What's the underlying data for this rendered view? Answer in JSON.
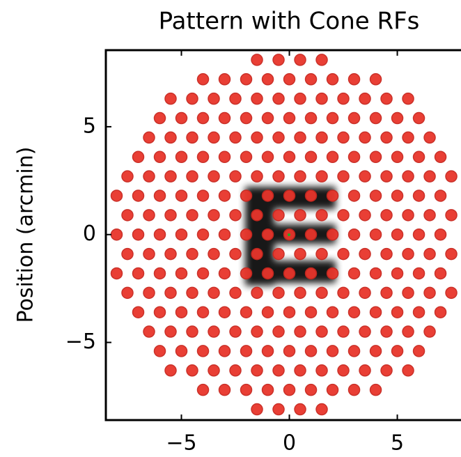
{
  "chart_data": {
    "type": "scatter",
    "title": "Pattern with Cone RFs",
    "ylabel": "Position (arcmin)",
    "color": "#e8352b",
    "xlim": [
      -8.5,
      7.95
    ],
    "ylim": [
      -8.6,
      8.55
    ],
    "xticks": [
      {
        "value": -5,
        "label": "−5"
      },
      0,
      5
    ],
    "yticks": [
      {
        "value": -5,
        "label": "−5"
      },
      0,
      5
    ],
    "x": [
      -1.5,
      -0.5,
      0.5,
      1.5,
      -4,
      -3,
      -2,
      -1,
      0,
      1,
      2,
      3,
      4,
      -5.5,
      -4.5,
      -3.5,
      -2.5,
      -1.5,
      -0.5,
      0.5,
      1.5,
      2.5,
      3.5,
      4.5,
      5.5,
      -6,
      -5,
      -4,
      -3,
      -2,
      -1,
      0,
      1,
      2,
      3,
      4,
      5,
      6,
      -6.5,
      -5.5,
      -4.5,
      -3.5,
      -2.5,
      -1.5,
      -0.5,
      0.5,
      1.5,
      2.5,
      3.5,
      4.5,
      5.5,
      6.5,
      -7,
      -6,
      -5,
      -4,
      -3,
      -2,
      -1,
      0,
      1,
      2,
      3,
      4,
      5,
      6,
      7,
      -7.5,
      -6.5,
      -5.5,
      -4.5,
      -3.5,
      -2.5,
      -1.5,
      -0.5,
      0.5,
      1.5,
      2.5,
      3.5,
      4.5,
      5.5,
      6.5,
      7.5,
      -8,
      -7,
      -6,
      -5,
      -4,
      -3,
      -2,
      -1,
      0,
      1,
      2,
      3,
      4,
      5,
      6,
      7,
      -7.5,
      -6.5,
      -5.5,
      -4.5,
      -3.5,
      -2.5,
      -1.5,
      -0.5,
      0.5,
      1.5,
      2.5,
      3.5,
      4.5,
      5.5,
      6.5,
      7.5,
      -8,
      -7,
      -6,
      -5,
      -4,
      -3,
      -2,
      -1,
      0,
      1,
      2,
      3,
      4,
      5,
      6,
      7,
      -7.5,
      -6.5,
      -5.5,
      -4.5,
      -3.5,
      -2.5,
      -1.5,
      -0.5,
      0.5,
      1.5,
      2.5,
      3.5,
      4.5,
      5.5,
      6.5,
      7.5,
      -8,
      -7,
      -6,
      -5,
      -4,
      -3,
      -2,
      -1,
      0,
      1,
      2,
      3,
      4,
      5,
      6,
      7,
      -7.5,
      -6.5,
      -5.5,
      -4.5,
      -3.5,
      -2.5,
      -1.5,
      -0.5,
      0.5,
      1.5,
      2.5,
      3.5,
      4.5,
      5.5,
      6.5,
      7.5,
      -7,
      -6,
      -5,
      -4,
      -3,
      -2,
      -1,
      0,
      1,
      2,
      3,
      4,
      5,
      6,
      7,
      -6.5,
      -5.5,
      -4.5,
      -3.5,
      -2.5,
      -1.5,
      -0.5,
      0.5,
      1.5,
      2.5,
      3.5,
      4.5,
      5.5,
      6.5,
      -6,
      -5,
      -4,
      -3,
      -2,
      -1,
      0,
      1,
      2,
      3,
      4,
      5,
      6,
      -5.5,
      -4.5,
      -3.5,
      -2.5,
      -1.5,
      -0.5,
      0.5,
      1.5,
      2.5,
      3.5,
      4.5,
      5.5,
      -4,
      -3,
      -2,
      -1,
      0,
      1,
      2,
      3,
      4,
      -1.5,
      -0.5,
      0.5,
      1.5
    ],
    "values": [
      8.1,
      8.1,
      8.1,
      8.1,
      7.2,
      7.2,
      7.2,
      7.2,
      7.2,
      7.2,
      7.2,
      7.2,
      7.2,
      6.3,
      6.3,
      6.3,
      6.3,
      6.3,
      6.3,
      6.3,
      6.3,
      6.3,
      6.3,
      6.3,
      6.3,
      5.4,
      5.4,
      5.4,
      5.4,
      5.4,
      5.4,
      5.4,
      5.4,
      5.4,
      5.4,
      5.4,
      5.4,
      5.4,
      4.5,
      4.5,
      4.5,
      4.5,
      4.5,
      4.5,
      4.5,
      4.5,
      4.5,
      4.5,
      4.5,
      4.5,
      4.5,
      4.5,
      3.6,
      3.6,
      3.6,
      3.6,
      3.6,
      3.6,
      3.6,
      3.6,
      3.6,
      3.6,
      3.6,
      3.6,
      3.6,
      3.6,
      3.6,
      2.7,
      2.7,
      2.7,
      2.7,
      2.7,
      2.7,
      2.7,
      2.7,
      2.7,
      2.7,
      2.7,
      2.7,
      2.7,
      2.7,
      2.7,
      2.7,
      1.8,
      1.8,
      1.8,
      1.8,
      1.8,
      1.8,
      1.8,
      1.8,
      1.8,
      1.8,
      1.8,
      1.8,
      1.8,
      1.8,
      1.8,
      1.8,
      0.9,
      0.9,
      0.9,
      0.9,
      0.9,
      0.9,
      0.9,
      0.9,
      0.9,
      0.9,
      0.9,
      0.9,
      0.9,
      0.9,
      0.9,
      0.9,
      0,
      0,
      0,
      0,
      0,
      0,
      0,
      0,
      0,
      0,
      0,
      0,
      0,
      0,
      0,
      0,
      -0.9,
      -0.9,
      -0.9,
      -0.9,
      -0.9,
      -0.9,
      -0.9,
      -0.9,
      -0.9,
      -0.9,
      -0.9,
      -0.9,
      -0.9,
      -0.9,
      -0.9,
      -0.9,
      -1.8,
      -1.8,
      -1.8,
      -1.8,
      -1.8,
      -1.8,
      -1.8,
      -1.8,
      -1.8,
      -1.8,
      -1.8,
      -1.8,
      -1.8,
      -1.8,
      -1.8,
      -1.8,
      -2.7,
      -2.7,
      -2.7,
      -2.7,
      -2.7,
      -2.7,
      -2.7,
      -2.7,
      -2.7,
      -2.7,
      -2.7,
      -2.7,
      -2.7,
      -2.7,
      -2.7,
      -2.7,
      -3.6,
      -3.6,
      -3.6,
      -3.6,
      -3.6,
      -3.6,
      -3.6,
      -3.6,
      -3.6,
      -3.6,
      -3.6,
      -3.6,
      -3.6,
      -3.6,
      -3.6,
      -4.5,
      -4.5,
      -4.5,
      -4.5,
      -4.5,
      -4.5,
      -4.5,
      -4.5,
      -4.5,
      -4.5,
      -4.5,
      -4.5,
      -4.5,
      -4.5,
      -5.4,
      -5.4,
      -5.4,
      -5.4,
      -5.4,
      -5.4,
      -5.4,
      -5.4,
      -5.4,
      -5.4,
      -5.4,
      -5.4,
      -5.4,
      -6.3,
      -6.3,
      -6.3,
      -6.3,
      -6.3,
      -6.3,
      -6.3,
      -6.3,
      -6.3,
      -6.3,
      -6.3,
      -6.3,
      -7.2,
      -7.2,
      -7.2,
      -7.2,
      -7.2,
      -7.2,
      -7.2,
      -7.2,
      -7.2,
      -8.1,
      -8.1,
      -8.1,
      -8.1
    ]
  }
}
